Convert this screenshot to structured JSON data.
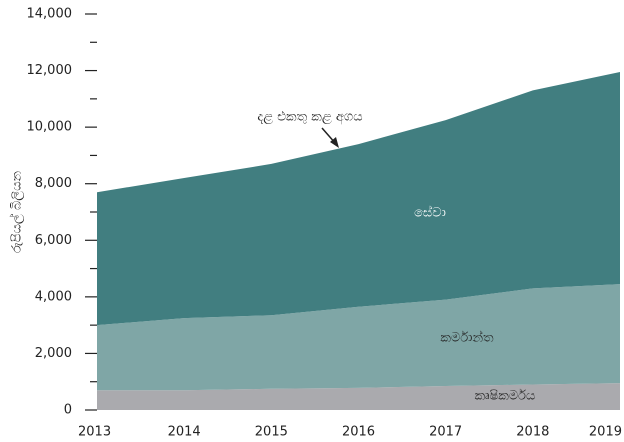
{
  "chart_data": {
    "type": "stacked_area",
    "y_label": "රුපියල් බිලියන",
    "annotation": "දළ එකතු කළ අගය",
    "categories": [
      "2013",
      "2014",
      "2015",
      "2016",
      "2017",
      "2018",
      "2019"
    ],
    "series": [
      {
        "name": "කෘෂිකර්මය",
        "color": "#aaaaae",
        "values": [
          700,
          700,
          750,
          780,
          850,
          900,
          950
        ]
      },
      {
        "name": "කර්මාන්ත",
        "color": "#7fa6a6",
        "values": [
          2300,
          2550,
          2600,
          2870,
          3050,
          3400,
          3500
        ]
      },
      {
        "name": "සේවා",
        "color": "#417e80",
        "values": [
          4700,
          4950,
          5350,
          5750,
          6350,
          7000,
          7500
        ]
      }
    ],
    "ylim": [
      0,
      14000
    ],
    "yticks": [
      0,
      {
        "value": 2000,
        "label": "2,000"
      },
      {
        "value": 4000,
        "label": "4,000"
      },
      {
        "value": 6000,
        "label": "6,000"
      },
      {
        "value": 8000,
        "label": "8,000"
      },
      {
        "value": 10000,
        "label": "10,000"
      },
      {
        "value": 12000,
        "label": "12,000"
      },
      {
        "value": 14000,
        "label": "14,000"
      }
    ],
    "yminorticks": [
      1000,
      3000,
      5000,
      7000,
      9000,
      11000,
      13000
    ]
  }
}
